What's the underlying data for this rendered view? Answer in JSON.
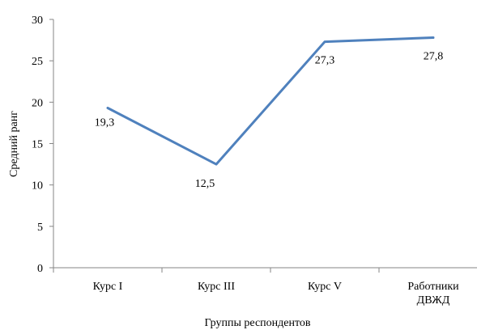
{
  "chart_data": {
    "type": "line",
    "categories": [
      "Курс I",
      "Курс III",
      "Курс V",
      "Работники ДВЖД"
    ],
    "category_lines": [
      [
        "Курс I"
      ],
      [
        "Курс III"
      ],
      [
        "Курс V"
      ],
      [
        "Работники",
        "ДВЖД"
      ]
    ],
    "series": [
      {
        "values": [
          19.3,
          12.5,
          27.3,
          27.8
        ],
        "labels": [
          "19,3",
          "12,5",
          "27,3",
          "27,8"
        ],
        "color": "#4f81bd"
      }
    ],
    "ylim": [
      0,
      30
    ],
    "yticks": [
      0,
      5,
      10,
      15,
      20,
      25,
      30
    ],
    "xlabel": "Группы респондентов",
    "ylabel": "Средний ранг",
    "grid": false,
    "legend": "none"
  }
}
